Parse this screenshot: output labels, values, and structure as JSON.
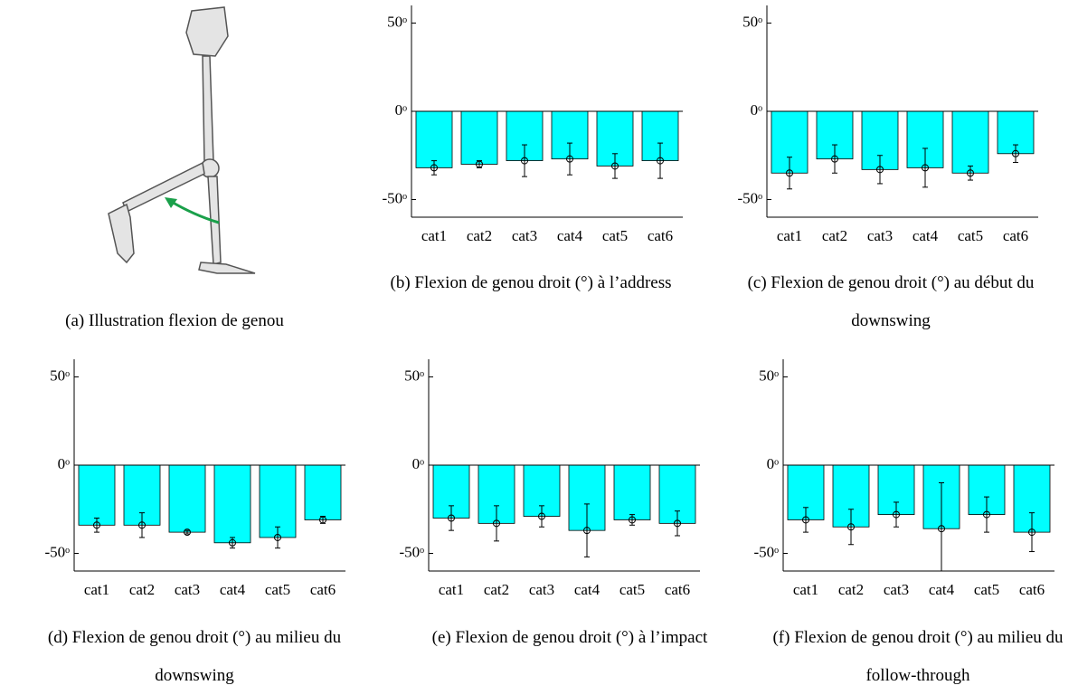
{
  "figure_a": {
    "caption": "(a) Illustration flexion de genou"
  },
  "chart_data": [
    {
      "type": "bar",
      "caption": "(b) Flexion de genou droit (°) à l’address",
      "categories": [
        "cat1",
        "cat2",
        "cat3",
        "cat4",
        "cat5",
        "cat6"
      ],
      "series": [
        {
          "color": "#00ffff",
          "values": [
            -32,
            -30,
            -28,
            -27,
            -31,
            -28
          ],
          "errors": [
            4,
            2,
            9,
            9,
            7,
            10
          ]
        }
      ],
      "ylim": [
        -60,
        60
      ],
      "yticks": [
        {
          "value": -50,
          "label": "-50ᵒ"
        },
        {
          "value": 0,
          "label": "0ᵒ"
        },
        {
          "value": 50,
          "label": "50ᵒ"
        }
      ]
    },
    {
      "type": "bar",
      "caption": "(c) Flexion de genou droit (°) au début du downswing",
      "categories": [
        "cat1",
        "cat2",
        "cat3",
        "cat4",
        "cat5",
        "cat6"
      ],
      "series": [
        {
          "color": "#00ffff",
          "values": [
            -35,
            -27,
            -33,
            -32,
            -35,
            -24
          ],
          "errors": [
            9,
            8,
            8,
            11,
            4,
            5
          ]
        }
      ],
      "ylim": [
        -60,
        60
      ],
      "yticks": [
        {
          "value": -50,
          "label": "-50ᵒ"
        },
        {
          "value": 0,
          "label": "0ᵒ"
        },
        {
          "value": 50,
          "label": "50ᵒ"
        }
      ]
    },
    {
      "type": "bar",
      "caption": "(d) Flexion de genou droit (°) au milieu du downswing",
      "categories": [
        "cat1",
        "cat2",
        "cat3",
        "cat4",
        "cat5",
        "cat6"
      ],
      "series": [
        {
          "color": "#00ffff",
          "values": [
            -34,
            -34,
            -38,
            -44,
            -41,
            -31
          ],
          "errors": [
            4,
            7,
            1,
            3,
            6,
            2
          ]
        }
      ],
      "ylim": [
        -60,
        60
      ],
      "yticks": [
        {
          "value": -50,
          "label": "-50ᵒ"
        },
        {
          "value": 0,
          "label": "0ᵒ"
        },
        {
          "value": 50,
          "label": "50ᵒ"
        }
      ]
    },
    {
      "type": "bar",
      "caption": "(e) Flexion de genou droit (°) à l’impact",
      "categories": [
        "cat1",
        "cat2",
        "cat3",
        "cat4",
        "cat5",
        "cat6"
      ],
      "series": [
        {
          "color": "#00ffff",
          "values": [
            -30,
            -33,
            -29,
            -37,
            -31,
            -33
          ],
          "errors": [
            7,
            10,
            6,
            15,
            3,
            7
          ]
        }
      ],
      "ylim": [
        -60,
        60
      ],
      "yticks": [
        {
          "value": -50,
          "label": "-50ᵒ"
        },
        {
          "value": 0,
          "label": "0ᵒ"
        },
        {
          "value": 50,
          "label": "50ᵒ"
        }
      ]
    },
    {
      "type": "bar",
      "caption": "(f) Flexion de genou droit (°) au milieu du follow-through",
      "categories": [
        "cat1",
        "cat2",
        "cat3",
        "cat4",
        "cat5",
        "cat6"
      ],
      "series": [
        {
          "color": "#00ffff",
          "values": [
            -31,
            -35,
            -28,
            -36,
            -28,
            -38
          ],
          "errors": [
            7,
            10,
            7,
            26,
            10,
            11
          ]
        }
      ],
      "ylim": [
        -60,
        60
      ],
      "yticks": [
        {
          "value": -50,
          "label": "-50ᵒ"
        },
        {
          "value": 0,
          "label": "0ᵒ"
        },
        {
          "value": 50,
          "label": "50ᵒ"
        }
      ]
    }
  ]
}
